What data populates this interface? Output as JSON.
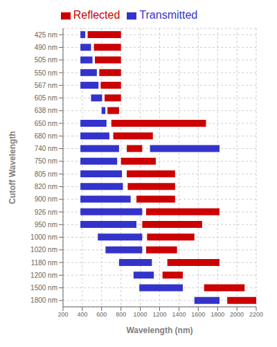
{
  "chart_data": {
    "type": "bar",
    "orientation": "horizontal",
    "xlabel": "Wavelength (nm)",
    "ylabel": "Cutoff Wavelength",
    "categories": [
      "425 nm",
      "490 nm",
      "505 nm",
      "550 nm",
      "567 nm",
      "605 nm",
      "638 nm",
      "650 nm",
      "680 nm",
      "740 nm",
      "750 nm",
      "805 nm",
      "820 nm",
      "900 nm",
      "926 nm",
      "950 nm",
      "1000 nm",
      "1020 nm",
      "1180 nm",
      "1200 nm",
      "1500 nm",
      "1800 nm"
    ],
    "series": [
      {
        "name": "Transmitted",
        "color": "#3333CC",
        "values": [
          [
            [
              380,
              430
            ]
          ],
          [
            [
              380,
              490
            ]
          ],
          [
            [
              380,
              505
            ]
          ],
          [
            [
              380,
              550
            ]
          ],
          [
            [
              380,
              567
            ]
          ],
          [
            [
              490,
              605
            ]
          ],
          [
            [
              600,
              638
            ]
          ],
          [
            [
              380,
              650
            ]
          ],
          [
            [
              380,
              680
            ]
          ],
          [
            [
              380,
              780
            ],
            [
              1100,
              1820
            ]
          ],
          [
            [
              380,
              760
            ]
          ],
          [
            [
              380,
              810
            ]
          ],
          [
            [
              380,
              820
            ]
          ],
          [
            [
              380,
              900
            ]
          ],
          [
            [
              380,
              1020
            ]
          ],
          [
            [
              380,
              960
            ]
          ],
          [
            [
              560,
              1020
            ]
          ],
          [
            [
              640,
              1020
            ]
          ],
          [
            [
              780,
              1120
            ]
          ],
          [
            [
              930,
              1140
            ]
          ],
          [
            [
              990,
              1440
            ]
          ],
          [
            [
              1560,
              1820
            ]
          ]
        ]
      },
      {
        "name": "Reflected",
        "color": "#CC0000",
        "values": [
          [
            [
              455,
              800
            ]
          ],
          [
            [
              520,
              800
            ]
          ],
          [
            [
              530,
              800
            ]
          ],
          [
            [
              575,
              800
            ]
          ],
          [
            [
              590,
              800
            ]
          ],
          [
            [
              630,
              800
            ]
          ],
          [
            [
              660,
              780
            ]
          ],
          [
            [
              700,
              1680
            ]
          ],
          [
            [
              720,
              1130
            ]
          ],
          [
            [
              860,
              1020
            ]
          ],
          [
            [
              800,
              1160
            ]
          ],
          [
            [
              860,
              1360
            ]
          ],
          [
            [
              870,
              1360
            ]
          ],
          [
            [
              960,
              1360
            ]
          ],
          [
            [
              1060,
              1820
            ]
          ],
          [
            [
              1020,
              1640
            ]
          ],
          [
            [
              1070,
              1560
            ]
          ],
          [
            [
              1060,
              1380
            ]
          ],
          [
            [
              1280,
              1820
            ]
          ],
          [
            [
              1230,
              1440
            ]
          ],
          [
            [
              1660,
              2080
            ]
          ],
          [
            [
              1900,
              2200
            ]
          ]
        ]
      }
    ],
    "xlim": [
      200,
      2200
    ],
    "xticks": [
      200,
      400,
      600,
      800,
      1000,
      1200,
      1400,
      1600,
      1800,
      2000,
      2200
    ],
    "grid": true,
    "legend": "top"
  }
}
